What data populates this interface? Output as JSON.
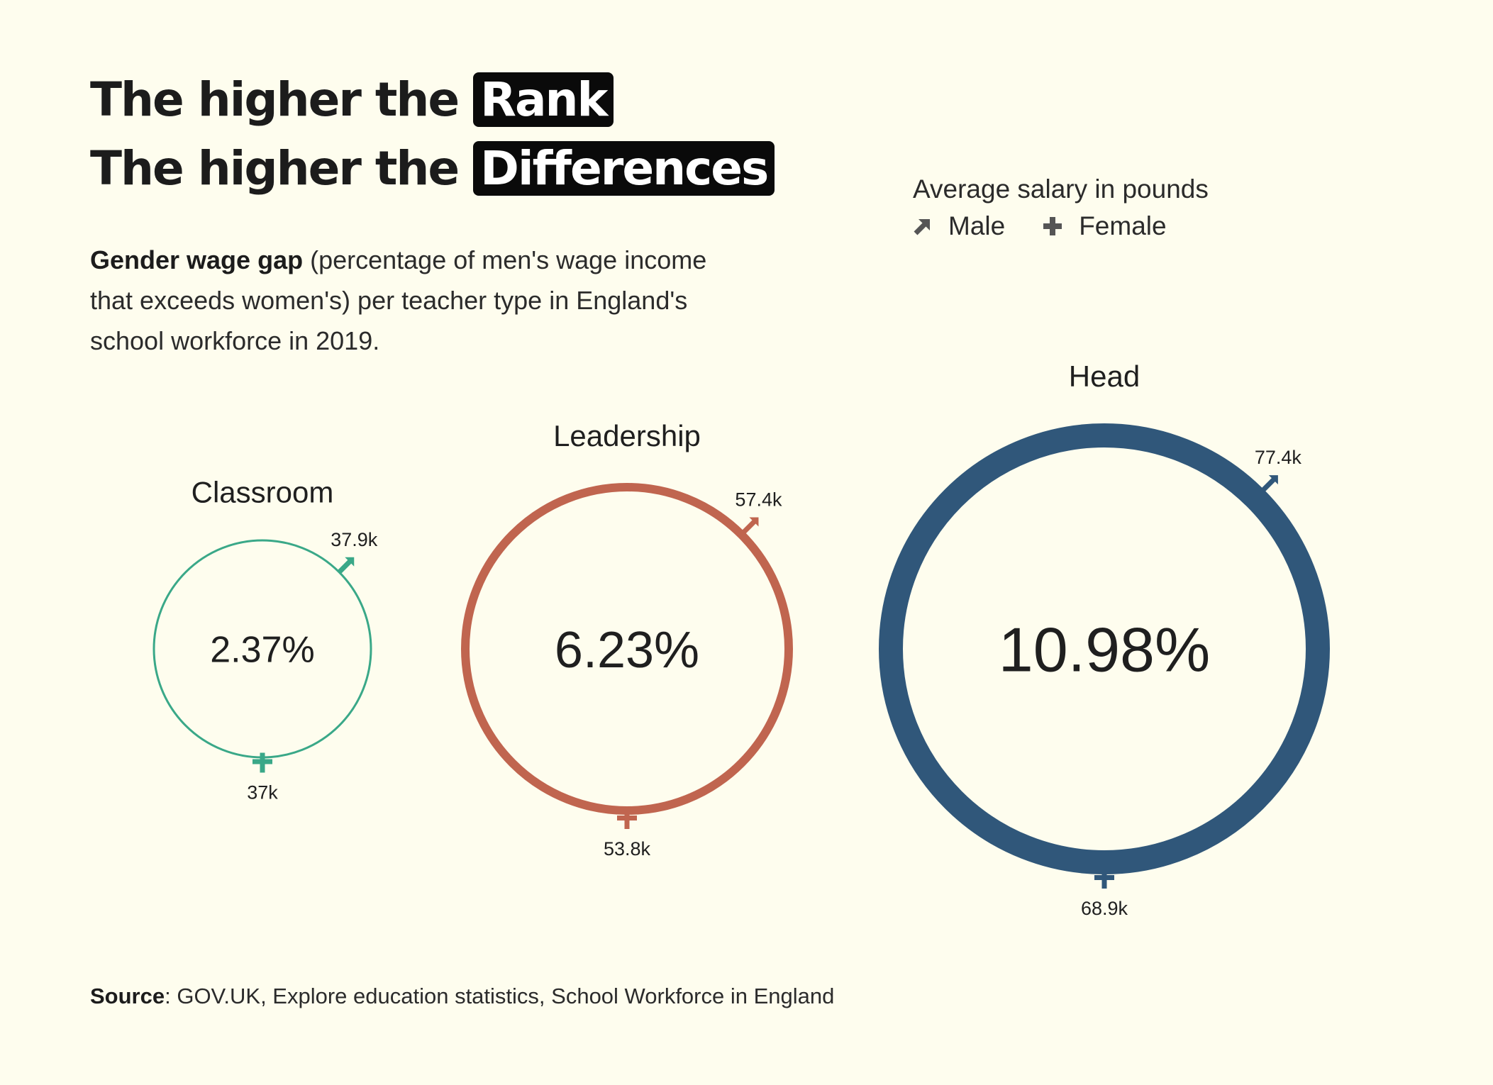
{
  "title": {
    "line1_prefix": "The higher the",
    "line1_highlight": "Rank",
    "line2_prefix": "The higher the",
    "line2_highlight": "Differences"
  },
  "subtitle": {
    "bold": "Gender wage gap",
    "rest": " (percentage of men's wage income that exceeds women's) per teacher type in England's school workforce in 2019."
  },
  "legend": {
    "title": "Average salary in pounds",
    "male": "Male",
    "female": "Female"
  },
  "source": {
    "label": "Source",
    "text": ": GOV.UK, Explore education statistics, School Workforce in England"
  },
  "colors": {
    "background": "#fefdee",
    "classroom": "#3aa888",
    "leadership": "#c0654f",
    "head": "#30577a",
    "legend_icon": "#555555"
  },
  "chart_data": {
    "type": "bubble",
    "series": [
      {
        "category": "Classroom",
        "gap_percent": 2.37,
        "gap_label": "2.37%",
        "male_salary_k": 37.9,
        "male_label": "37.9k",
        "female_salary_k": 37.0,
        "female_label": "37k",
        "color": "#3aa888"
      },
      {
        "category": "Leadership",
        "gap_percent": 6.23,
        "gap_label": "6.23%",
        "male_salary_k": 57.4,
        "male_label": "57.4k",
        "female_salary_k": 53.8,
        "female_label": "53.8k",
        "color": "#c0654f"
      },
      {
        "category": "Head",
        "gap_percent": 10.98,
        "gap_label": "10.98%",
        "male_salary_k": 77.4,
        "male_label": "77.4k",
        "female_salary_k": 68.9,
        "female_label": "68.9k",
        "color": "#30577a"
      }
    ]
  }
}
